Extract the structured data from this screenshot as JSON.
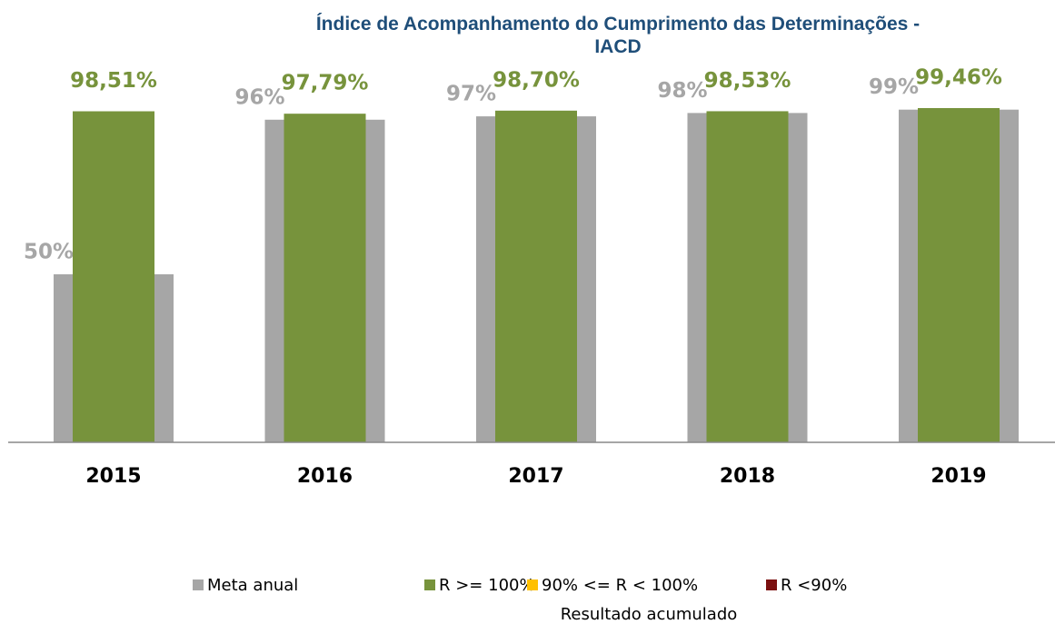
{
  "chart_data": {
    "type": "bar",
    "title": "Índice de Acompanhamento do Cumprimento das Determinações - IACD",
    "categories": [
      "2015",
      "2016",
      "2017",
      "2018",
      "2019"
    ],
    "series": [
      {
        "name": "Meta anual",
        "color": "#a6a6a6",
        "values": [
          50,
          96,
          97,
          98,
          99
        ],
        "value_labels": [
          "50%",
          "96%",
          "97%",
          "98%",
          "99%"
        ]
      },
      {
        "name": "R >= 100%",
        "color": "#77933c",
        "values": [
          98.51,
          97.79,
          98.7,
          98.53,
          99.46
        ],
        "value_labels": [
          "98,51%",
          "97,79%",
          "98,70%",
          "98,53%",
          "99,46%"
        ]
      },
      {
        "name": "90% <= R < 100%",
        "color": "#ffc000",
        "values": [
          null,
          null,
          null,
          null,
          null
        ]
      },
      {
        "name": "R <90%",
        "color": "#7b1010",
        "values": [
          null,
          null,
          null,
          null,
          null
        ]
      }
    ],
    "legend_title": "Resultado acumulado",
    "ylim": [
      0,
      100
    ]
  }
}
